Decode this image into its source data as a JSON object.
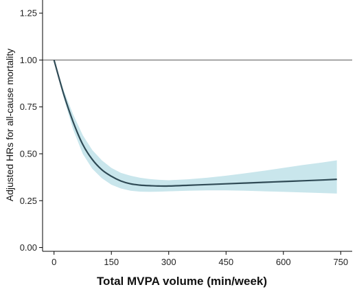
{
  "chart_data": {
    "type": "line",
    "title": "",
    "xlabel": "Total MVPA volume (min/week)",
    "ylabel": "Adjusted HRs for all-cause mortality",
    "xlim": [
      -30,
      780
    ],
    "ylim": [
      -0.02,
      1.32
    ],
    "xticks": [
      0,
      150,
      300,
      450,
      600,
      750
    ],
    "xtick_labels": [
      "0",
      "150",
      "300",
      "450",
      "600",
      "750"
    ],
    "yticks": [
      0.0,
      0.25,
      0.5,
      0.75,
      1.0,
      1.25
    ],
    "ytick_labels": [
      "0.00",
      "0.25",
      "0.50",
      "0.75",
      "1.00",
      "1.25"
    ],
    "reference_line": {
      "y": 1.0
    },
    "grid": false,
    "legend": "none",
    "colors": {
      "line": "#2f4a55",
      "band": "#c9e6ec",
      "refline": "#555555",
      "axis": "#000000"
    },
    "series": [
      {
        "x": [
          0,
          25,
          50,
          75,
          100,
          125,
          150,
          175,
          200,
          225,
          250,
          275,
          300,
          350,
          400,
          450,
          500,
          550,
          600,
          650,
          700,
          740
        ],
        "y": [
          1.0,
          0.82,
          0.67,
          0.55,
          0.47,
          0.415,
          0.38,
          0.355,
          0.34,
          0.333,
          0.33,
          0.328,
          0.328,
          0.332,
          0.336,
          0.34,
          0.344,
          0.348,
          0.352,
          0.356,
          0.36,
          0.364
        ],
        "lower": [
          1.0,
          0.8,
          0.63,
          0.5,
          0.42,
          0.37,
          0.335,
          0.315,
          0.303,
          0.298,
          0.297,
          0.298,
          0.3,
          0.303,
          0.305,
          0.305,
          0.303,
          0.3,
          0.297,
          0.294,
          0.291,
          0.288
        ],
        "upper": [
          1.0,
          0.84,
          0.71,
          0.6,
          0.52,
          0.465,
          0.425,
          0.398,
          0.383,
          0.372,
          0.365,
          0.361,
          0.359,
          0.364,
          0.372,
          0.383,
          0.396,
          0.41,
          0.425,
          0.44,
          0.453,
          0.465
        ]
      }
    ]
  }
}
